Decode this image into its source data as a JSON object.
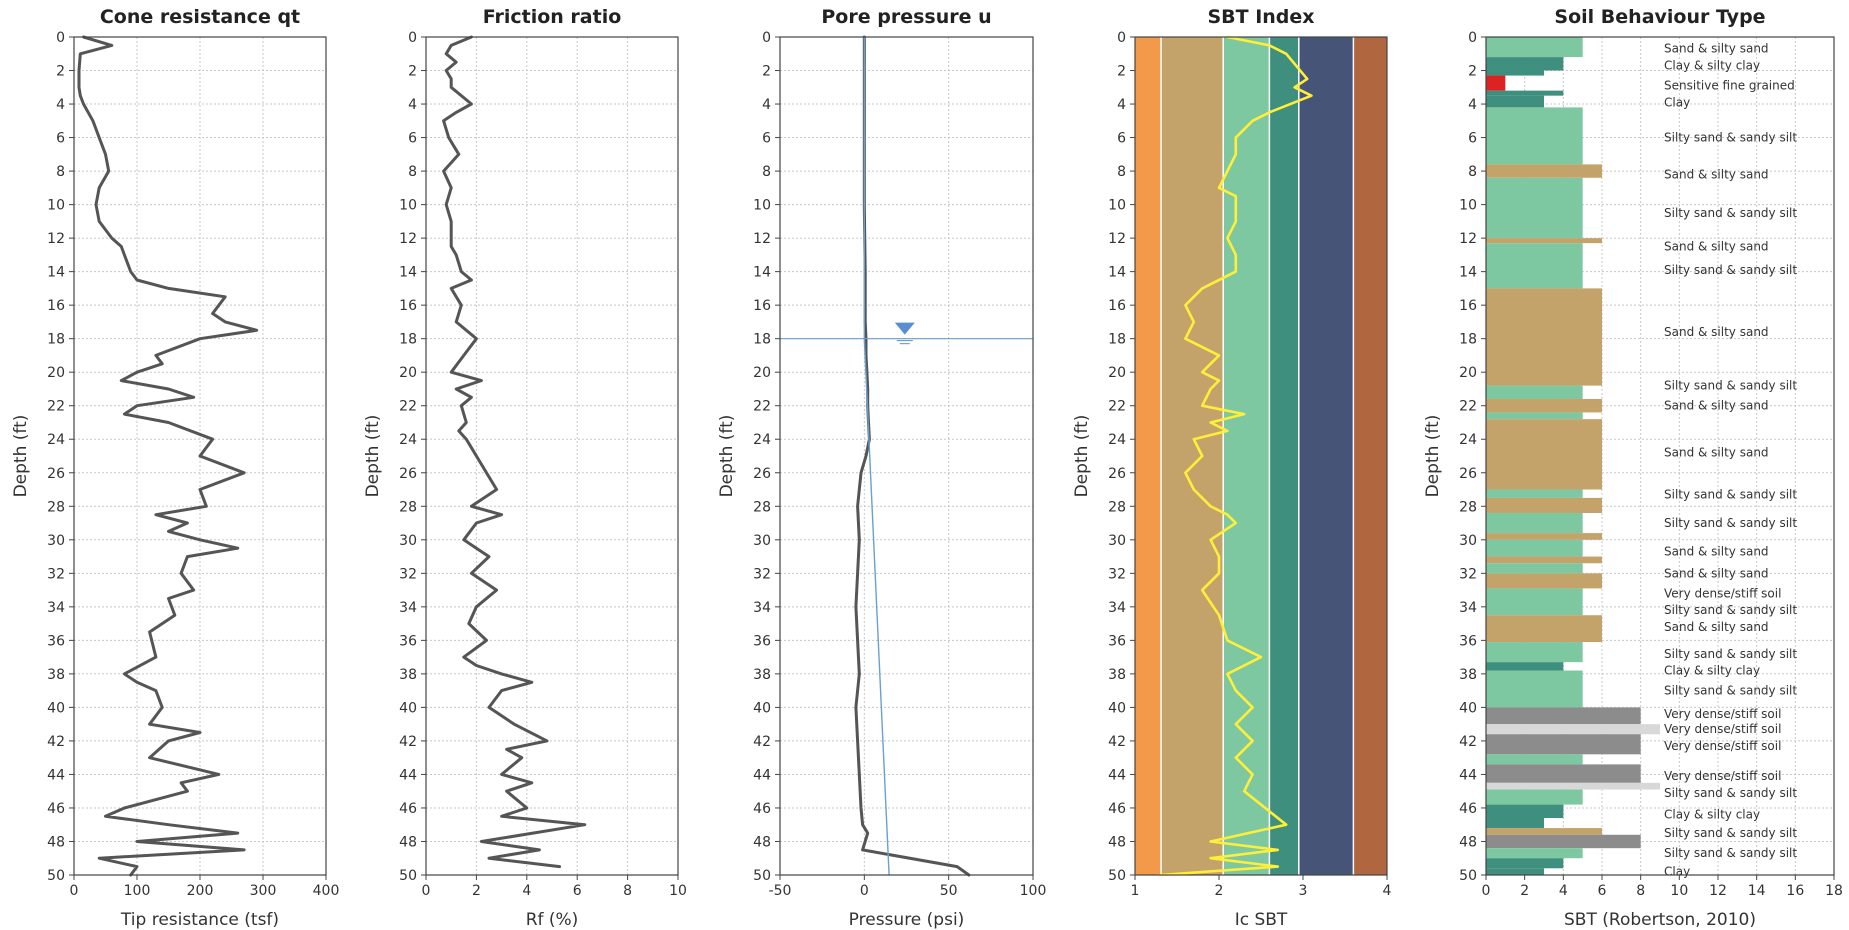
{
  "chart_data": [
    {
      "type": "line",
      "title": "Cone resistance qt",
      "xlabel": "Tip resistance (tsf)",
      "ylabel": "Depth (ft)",
      "xlim": [
        0,
        400
      ],
      "ylim": [
        0,
        50
      ],
      "xticks": [
        0,
        100,
        200,
        300,
        400
      ],
      "yticks": [
        0,
        2,
        4,
        6,
        8,
        10,
        12,
        14,
        16,
        18,
        20,
        22,
        24,
        26,
        28,
        30,
        32,
        34,
        36,
        38,
        40,
        42,
        44,
        46,
        48,
        50
      ],
      "grid": true,
      "series": [
        {
          "color": "#555555",
          "x": [
            15,
            60,
            10,
            8,
            8,
            10,
            15,
            30,
            40,
            50,
            55,
            40,
            35,
            40,
            60,
            75,
            80,
            90,
            100,
            150,
            240,
            220,
            240,
            290,
            200,
            130,
            140,
            100,
            75,
            150,
            190,
            100,
            80,
            150,
            220,
            200,
            270,
            200,
            210,
            130,
            180,
            150,
            200,
            260,
            180,
            170,
            190,
            150,
            160,
            140,
            120,
            130,
            80,
            100,
            130,
            140,
            120,
            200,
            150,
            120,
            230,
            170,
            180,
            80,
            50,
            150,
            260,
            100,
            270,
            40,
            100,
            90
          ],
          "y": [
            0,
            0.5,
            1,
            2,
            3,
            3.5,
            4,
            5,
            6,
            7,
            8,
            9,
            10,
            11,
            12,
            12.5,
            13,
            14,
            14.5,
            15,
            15.5,
            16.5,
            17,
            17.5,
            18,
            19,
            19.5,
            20,
            20.5,
            21,
            21.5,
            22,
            22.5,
            23,
            24,
            25,
            26,
            27,
            28,
            28.5,
            29,
            29.5,
            30,
            30.5,
            31,
            32,
            33,
            33.5,
            34.5,
            35,
            35.5,
            37,
            38,
            38.5,
            39,
            40,
            41,
            41.5,
            42,
            43,
            44,
            44.5,
            45,
            46,
            46.5,
            47,
            47.5,
            48,
            48.5,
            49,
            49.5,
            50
          ]
        }
      ]
    },
    {
      "type": "line",
      "title": "Friction ratio",
      "xlabel": "Rf (%)",
      "ylabel": "Depth (ft)",
      "xlim": [
        0,
        10
      ],
      "ylim": [
        0,
        50
      ],
      "xticks": [
        0,
        2,
        4,
        6,
        8,
        10
      ],
      "yticks": [
        0,
        2,
        4,
        6,
        8,
        10,
        12,
        14,
        16,
        18,
        20,
        22,
        24,
        26,
        28,
        30,
        32,
        34,
        36,
        38,
        40,
        42,
        44,
        46,
        48,
        50
      ],
      "grid": true,
      "series": [
        {
          "color": "#555555",
          "x": [
            1.8,
            1.0,
            0.8,
            1.2,
            0.8,
            1.0,
            1.0,
            1.8,
            1.2,
            0.7,
            0.9,
            1.3,
            0.7,
            1.0,
            0.8,
            1.0,
            1.0,
            1.0,
            1.2,
            1.4,
            1.8,
            1.0,
            1.4,
            1.2,
            2.0,
            1.5,
            1.0,
            2.2,
            1.2,
            1.8,
            1.4,
            1.6,
            1.3,
            1.6,
            2.0,
            2.8,
            1.8,
            3.0,
            2.0,
            1.5,
            2.0,
            2.5,
            1.8,
            2.8,
            2.0,
            1.7,
            2.4,
            1.5,
            2.0,
            3.0,
            4.2,
            3.0,
            2.5,
            3.5,
            4.8,
            3.2,
            3.8,
            3.0,
            4.2,
            3.2,
            4.0,
            3.0,
            6.3,
            2.2,
            4.5,
            2.5,
            5.3
          ],
          "y": [
            0,
            0.5,
            1,
            1.5,
            2,
            2.5,
            3,
            4,
            4.5,
            5,
            6,
            7,
            8,
            9,
            10,
            11,
            12,
            12.5,
            13,
            14,
            14.5,
            15,
            16,
            17,
            18,
            19,
            20,
            20.5,
            21,
            21.5,
            22,
            23,
            23.5,
            24,
            25,
            27,
            28,
            28.5,
            29,
            30,
            30.5,
            31,
            32,
            33,
            34,
            35,
            36,
            37,
            37.5,
            38,
            38.5,
            39,
            40,
            41,
            42,
            42.5,
            43,
            44,
            44.5,
            45,
            46,
            46.5,
            47,
            48,
            48.5,
            49,
            49.5
          ]
        }
      ]
    },
    {
      "type": "line",
      "title": "Pore pressure u",
      "xlabel": "Pressure (psi)",
      "ylabel": "Depth (ft)",
      "xlim": [
        -50,
        100
      ],
      "ylim": [
        0,
        50
      ],
      "xticks": [
        -50,
        0,
        50,
        100
      ],
      "yticks": [
        0,
        2,
        4,
        6,
        8,
        10,
        12,
        14,
        16,
        18,
        20,
        22,
        24,
        26,
        28,
        30,
        32,
        34,
        36,
        38,
        40,
        42,
        44,
        46,
        48,
        50
      ],
      "grid": true,
      "water_table_depth": 18,
      "series": [
        {
          "color": "#555555",
          "x": [
            0,
            0,
            0,
            0.5,
            0.5,
            1,
            1,
            1.5,
            2,
            2,
            2.5,
            3,
            2,
            1,
            -2,
            -3,
            -4,
            -3,
            -4,
            -5,
            -4,
            -3,
            -5,
            -4,
            -3,
            -2,
            -1,
            2,
            -1,
            55,
            62
          ],
          "y": [
            0,
            5,
            10,
            14,
            17,
            18,
            19,
            20,
            21,
            22,
            23,
            24,
            24.5,
            25,
            26,
            27,
            28,
            30,
            32,
            34,
            36,
            38,
            40,
            42,
            44,
            46,
            47,
            47.5,
            48.5,
            49.5,
            50
          ]
        },
        {
          "color": "#6a9fd0",
          "x": [
            0,
            0,
            14.7
          ],
          "y": [
            0,
            18,
            50
          ]
        }
      ]
    },
    {
      "type": "line",
      "title": "SBT Index",
      "xlabel": "Ic SBT",
      "ylabel": "Depth (ft)",
      "xlim": [
        1,
        4
      ],
      "ylim": [
        0,
        50
      ],
      "xticks": [
        1,
        2,
        3,
        4
      ],
      "yticks": [
        0,
        2,
        4,
        6,
        8,
        10,
        12,
        14,
        16,
        18,
        20,
        22,
        24,
        26,
        28,
        30,
        32,
        34,
        36,
        38,
        40,
        42,
        44,
        46,
        48,
        50
      ],
      "zone_boundaries": [
        1.31,
        2.05,
        2.6,
        2.95,
        3.6
      ],
      "zone_colors": [
        "#f39a4a",
        "#c4a36a",
        "#7dc8a0",
        "#3e8f7e",
        "#465478",
        "#b0663e"
      ],
      "series": [
        {
          "color": "#ffee3a",
          "x": [
            2.1,
            2.6,
            2.8,
            3.05,
            2.9,
            3.1,
            2.6,
            2.4,
            2.2,
            2.2,
            2.1,
            2.0,
            2.2,
            2.2,
            2.1,
            2.2,
            2.2,
            1.8,
            1.6,
            1.7,
            1.6,
            2.0,
            1.8,
            2.0,
            1.9,
            1.8,
            2.3,
            1.9,
            2.1,
            1.7,
            1.8,
            1.6,
            1.7,
            1.9,
            2.1,
            2.2,
            1.9,
            2.0,
            2.0,
            1.8,
            2.0,
            2.1,
            2.5,
            2.1,
            2.2,
            2.4,
            2.2,
            2.4,
            2.2,
            2.4,
            2.3,
            2.8,
            1.9,
            2.7,
            1.9,
            2.7,
            1.3
          ],
          "y": [
            0,
            0.5,
            1,
            2.5,
            3,
            3.5,
            4.5,
            5,
            6,
            7,
            8,
            9,
            9.5,
            11,
            12,
            13,
            14,
            15,
            16,
            17,
            18,
            19,
            20,
            20.5,
            21,
            22,
            22.5,
            23,
            23.5,
            24,
            25,
            26,
            27,
            28,
            28.5,
            29,
            30,
            31,
            32,
            33,
            34.5,
            36,
            37,
            38,
            39,
            40,
            41,
            42,
            43,
            44,
            45,
            47,
            48,
            48.5,
            49,
            49.5,
            50
          ]
        }
      ]
    },
    {
      "type": "bar",
      "title": "Soil Behaviour Type",
      "xlabel": "SBT (Robertson, 2010)",
      "ylabel": "Depth (ft)",
      "xlim": [
        0,
        18
      ],
      "ylim": [
        0,
        50
      ],
      "xticks": [
        0,
        2,
        4,
        6,
        8,
        10,
        12,
        14,
        16,
        18
      ],
      "yticks": [
        0,
        2,
        4,
        6,
        8,
        10,
        12,
        14,
        16,
        18,
        20,
        22,
        24,
        26,
        28,
        30,
        32,
        34,
        36,
        38,
        40,
        42,
        44,
        46,
        48,
        50
      ],
      "grid": true,
      "zone_colors": {
        "1": "#dd2222",
        "3": "#3e8f7e",
        "4": "#3e8f7e",
        "5": "#7dc8a0",
        "6": "#c4a36a",
        "7": "#f39a4a",
        "8": "#8c8c8c",
        "9": "#d8d8d8"
      },
      "layers": [
        {
          "top": 0,
          "bottom": 1.2,
          "value": 5
        },
        {
          "top": 1.2,
          "bottom": 2.0,
          "value": 4
        },
        {
          "top": 2.0,
          "bottom": 2.3,
          "value": 3
        },
        {
          "top": 2.3,
          "bottom": 3.2,
          "value": 1
        },
        {
          "top": 3.2,
          "bottom": 3.5,
          "value": 4
        },
        {
          "top": 3.5,
          "bottom": 4.2,
          "value": 3
        },
        {
          "top": 4.2,
          "bottom": 7.6,
          "value": 5
        },
        {
          "top": 7.6,
          "bottom": 8.4,
          "value": 6
        },
        {
          "top": 8.4,
          "bottom": 12.0,
          "value": 5
        },
        {
          "top": 12.0,
          "bottom": 12.3,
          "value": 6
        },
        {
          "top": 12.3,
          "bottom": 15.0,
          "value": 5
        },
        {
          "top": 15.0,
          "bottom": 20.8,
          "value": 6
        },
        {
          "top": 20.8,
          "bottom": 21.6,
          "value": 5
        },
        {
          "top": 21.6,
          "bottom": 22.4,
          "value": 6
        },
        {
          "top": 22.4,
          "bottom": 22.8,
          "value": 5
        },
        {
          "top": 22.8,
          "bottom": 27.0,
          "value": 6
        },
        {
          "top": 27.0,
          "bottom": 27.5,
          "value": 5
        },
        {
          "top": 27.5,
          "bottom": 28.4,
          "value": 6
        },
        {
          "top": 28.4,
          "bottom": 29.6,
          "value": 5
        },
        {
          "top": 29.6,
          "bottom": 30.0,
          "value": 6
        },
        {
          "top": 30.0,
          "bottom": 31.0,
          "value": 5
        },
        {
          "top": 31.0,
          "bottom": 31.4,
          "value": 6
        },
        {
          "top": 31.4,
          "bottom": 32.0,
          "value": 5
        },
        {
          "top": 32.0,
          "bottom": 32.9,
          "value": 6
        },
        {
          "top": 32.9,
          "bottom": 34.5,
          "value": 5
        },
        {
          "top": 34.5,
          "bottom": 36.1,
          "value": 6
        },
        {
          "top": 36.1,
          "bottom": 37.3,
          "value": 5
        },
        {
          "top": 37.3,
          "bottom": 37.8,
          "value": 4
        },
        {
          "top": 37.8,
          "bottom": 40.0,
          "value": 5
        },
        {
          "top": 40.0,
          "bottom": 41.0,
          "value": 8
        },
        {
          "top": 41.0,
          "bottom": 41.6,
          "value": 9
        },
        {
          "top": 41.6,
          "bottom": 42.8,
          "value": 8
        },
        {
          "top": 42.8,
          "bottom": 43.4,
          "value": 5
        },
        {
          "top": 43.4,
          "bottom": 44.5,
          "value": 8
        },
        {
          "top": 44.5,
          "bottom": 44.9,
          "value": 9
        },
        {
          "top": 44.9,
          "bottom": 45.8,
          "value": 5
        },
        {
          "top": 45.8,
          "bottom": 46.6,
          "value": 4
        },
        {
          "top": 46.6,
          "bottom": 47.2,
          "value": 3
        },
        {
          "top": 47.2,
          "bottom": 47.6,
          "value": 6
        },
        {
          "top": 47.6,
          "bottom": 48.4,
          "value": 8
        },
        {
          "top": 48.4,
          "bottom": 49.0,
          "value": 5
        },
        {
          "top": 49.0,
          "bottom": 49.6,
          "value": 4
        },
        {
          "top": 49.6,
          "bottom": 50.0,
          "value": 3
        }
      ],
      "annotations": [
        {
          "depth": 0.7,
          "label": "Sand & silty sand"
        },
        {
          "depth": 1.7,
          "label": "Clay & silty clay"
        },
        {
          "depth": 2.9,
          "label": "Sensitive fine grained"
        },
        {
          "depth": 3.9,
          "label": "Clay"
        },
        {
          "depth": 6.0,
          "label": "Silty sand & sandy silt"
        },
        {
          "depth": 8.2,
          "label": "Sand & silty sand"
        },
        {
          "depth": 10.5,
          "label": "Silty sand & sandy silt"
        },
        {
          "depth": 12.5,
          "label": "Sand & silty sand"
        },
        {
          "depth": 13.9,
          "label": "Silty sand & sandy silt"
        },
        {
          "depth": 17.6,
          "label": "Sand & silty sand"
        },
        {
          "depth": 20.8,
          "label": "Silty sand & sandy silt"
        },
        {
          "depth": 22.0,
          "label": "Sand & silty sand"
        },
        {
          "depth": 24.8,
          "label": "Sand & silty sand"
        },
        {
          "depth": 27.3,
          "label": "Silty sand & sandy silt"
        },
        {
          "depth": 29.0,
          "label": "Silty sand & sandy silt"
        },
        {
          "depth": 30.7,
          "label": "Sand & silty sand"
        },
        {
          "depth": 32.0,
          "label": "Sand & silty sand"
        },
        {
          "depth": 33.2,
          "label": "Very dense/stiff soil"
        },
        {
          "depth": 34.2,
          "label": "Silty sand & sandy silt"
        },
        {
          "depth": 35.2,
          "label": "Sand & silty sand"
        },
        {
          "depth": 36.8,
          "label": "Silty sand & sandy silt"
        },
        {
          "depth": 37.8,
          "label": "Clay & silty clay"
        },
        {
          "depth": 39.0,
          "label": "Silty sand & sandy silt"
        },
        {
          "depth": 40.4,
          "label": "Very dense/stiff soil"
        },
        {
          "depth": 41.3,
          "label": "Very dense/stiff soil"
        },
        {
          "depth": 42.3,
          "label": "Very dense/stiff soil"
        },
        {
          "depth": 44.1,
          "label": "Very dense/stiff soil"
        },
        {
          "depth": 45.1,
          "label": "Silty sand & sandy silt"
        },
        {
          "depth": 46.4,
          "label": "Clay & silty clay"
        },
        {
          "depth": 47.5,
          "label": "Silty sand & sandy silt"
        },
        {
          "depth": 48.7,
          "label": "Silty sand & sandy silt"
        },
        {
          "depth": 49.8,
          "label": "Clay"
        }
      ]
    }
  ]
}
